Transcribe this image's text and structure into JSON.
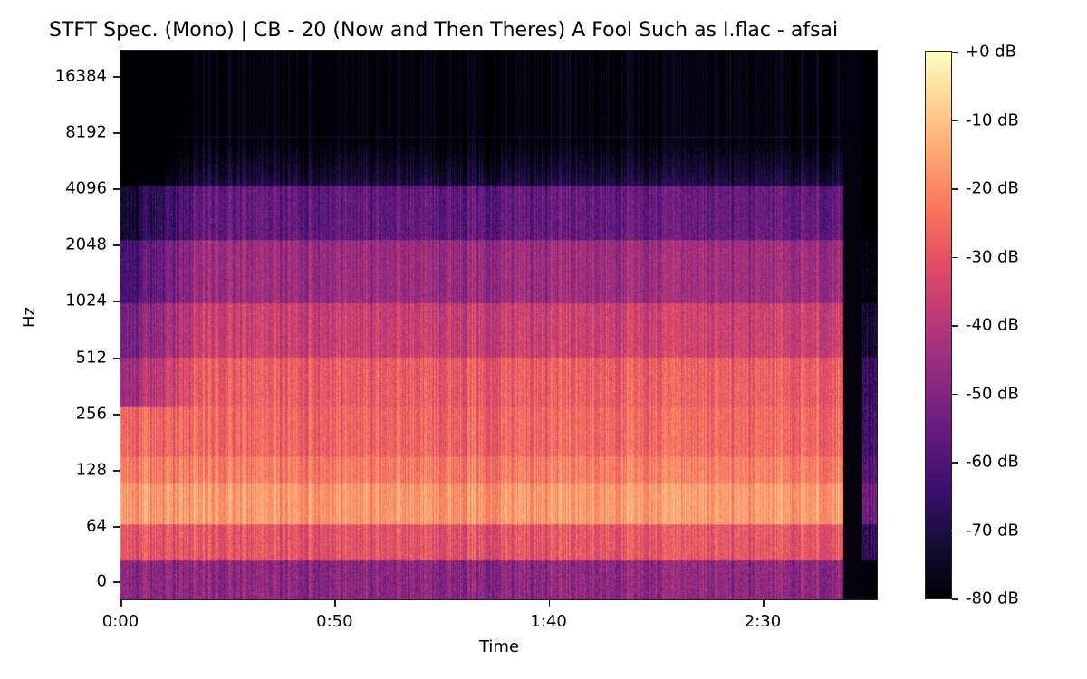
{
  "chart_data": {
    "type": "heatmap",
    "title": "STFT Spec. (Mono) | CB - 20 (Now and Then Theres) A Fool Such as I.flac - afsai",
    "xlabel": "Time",
    "ylabel": "Hz",
    "y_scale": "log (symlog)",
    "x_ticks": [
      {
        "label": "0:00",
        "seconds": 0
      },
      {
        "label": "0:50",
        "seconds": 50
      },
      {
        "label": "1:40",
        "seconds": 100
      },
      {
        "label": "2:30",
        "seconds": 150
      }
    ],
    "x_range_seconds": [
      0,
      177
    ],
    "y_ticks": [
      "16384",
      "8192",
      "4096",
      "2048",
      "1024",
      "512",
      "256",
      "128",
      "64",
      "0"
    ],
    "colorbar": {
      "label_format": "%+2.0f dB",
      "ticks": [
        "+0 dB",
        "-10 dB",
        "-20 dB",
        "-30 dB",
        "-40 dB",
        "-50 dB",
        "-60 dB",
        "-70 dB",
        "-80 dB"
      ],
      "range_db": [
        -80,
        0
      ],
      "colormap": "magma"
    },
    "grid": false,
    "legend": "none (colorbar right)",
    "description": "Spectrogram of a ~2:57 song; strongest energy (-10 to -20 dB) in 64-256 Hz band, mid energy up to ~2-4 kHz, content above ~8 kHz near -80 dB; gap/silence near ~2:50, short tail after.",
    "profile_by_band": [
      {
        "band": "0-32 Hz",
        "typical_db": -45
      },
      {
        "band": "64 Hz",
        "typical_db": -25
      },
      {
        "band": "128 Hz",
        "typical_db": -15
      },
      {
        "band": "256 Hz",
        "typical_db": -25
      },
      {
        "band": "512 Hz",
        "typical_db": -25
      },
      {
        "band": "1024 Hz",
        "typical_db": -35
      },
      {
        "band": "2048 Hz",
        "typical_db": -45
      },
      {
        "band": "4096 Hz",
        "typical_db": -58
      },
      {
        "band": "8192 Hz",
        "typical_db": -72
      },
      {
        "band": "16384 Hz",
        "typical_db": -80
      }
    ],
    "silence_regions_seconds": [
      [
        172,
        174
      ]
    ],
    "end_seconds": 177
  }
}
